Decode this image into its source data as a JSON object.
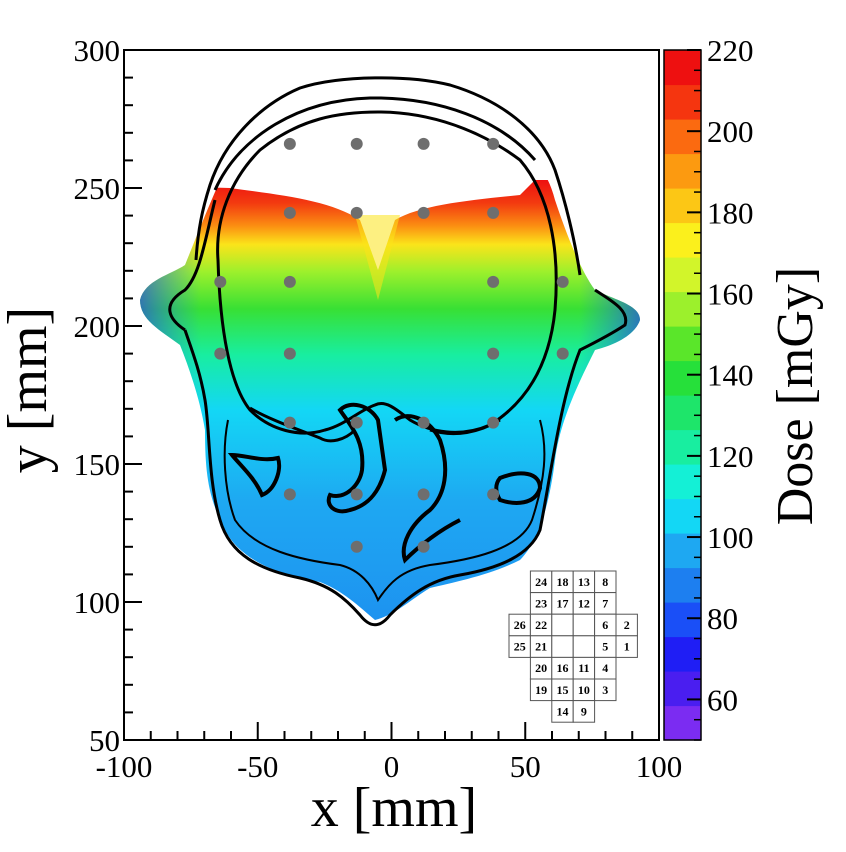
{
  "chart_data": {
    "type": "heatmap",
    "title": "",
    "xlabel": "x [mm]",
    "ylabel": "y [mm]",
    "xlim": [
      -100,
      100
    ],
    "ylim": [
      50,
      300
    ],
    "x_ticks": [
      -100,
      -50,
      0,
      50,
      100
    ],
    "y_ticks": [
      50,
      100,
      150,
      200,
      250,
      300
    ],
    "x_tick_labels": [
      "-100",
      "-50",
      "0",
      "50",
      "100"
    ],
    "y_tick_labels": [
      "50",
      "100",
      "150",
      "200",
      "250",
      "300"
    ],
    "colorbar": {
      "label": "Dose [mGy]",
      "range": [
        50,
        220
      ],
      "ticks": [
        60,
        80,
        100,
        120,
        140,
        160,
        180,
        200,
        220
      ],
      "tick_labels": [
        "60",
        "80",
        "100",
        "120",
        "140",
        "160",
        "180",
        "200",
        "220"
      ],
      "colors": [
        "#7b2cf2",
        "#4a1ef0",
        "#1f1ef5",
        "#1a4ff7",
        "#1d7ff0",
        "#1ea8f2",
        "#13d7f5",
        "#14f0d6",
        "#18eea0",
        "#1ee56a",
        "#26e03a",
        "#5ae62a",
        "#9cf02c",
        "#d2f52a",
        "#fbf01c",
        "#fcc715",
        "#fc9a10",
        "#fb6a10",
        "#f5350f",
        "#ee1010"
      ]
    },
    "dosimeter_points": [
      {
        "x": -38,
        "y": 266
      },
      {
        "x": -13,
        "y": 266
      },
      {
        "x": 12,
        "y": 266
      },
      {
        "x": 38,
        "y": 266
      },
      {
        "x": -38,
        "y": 241
      },
      {
        "x": -13,
        "y": 241
      },
      {
        "x": 12,
        "y": 241
      },
      {
        "x": 38,
        "y": 241
      },
      {
        "x": -64,
        "y": 216
      },
      {
        "x": -38,
        "y": 216
      },
      {
        "x": 38,
        "y": 216
      },
      {
        "x": 64,
        "y": 216
      },
      {
        "x": -64,
        "y": 190
      },
      {
        "x": -38,
        "y": 190
      },
      {
        "x": 38,
        "y": 190
      },
      {
        "x": 64,
        "y": 190
      },
      {
        "x": -38,
        "y": 165
      },
      {
        "x": -13,
        "y": 165
      },
      {
        "x": 12,
        "y": 165
      },
      {
        "x": 38,
        "y": 165
      },
      {
        "x": -38,
        "y": 139
      },
      {
        "x": -13,
        "y": 139
      },
      {
        "x": 12,
        "y": 139
      },
      {
        "x": 38,
        "y": 139
      },
      {
        "x": -13,
        "y": 120
      },
      {
        "x": 12,
        "y": 120
      }
    ],
    "inset_grid": {
      "rows": [
        [
          "",
          "24",
          "18",
          "13",
          "8",
          ""
        ],
        [
          "",
          "23",
          "17",
          "12",
          "7",
          ""
        ],
        [
          "26",
          "22",
          "",
          "",
          "6",
          "2"
        ],
        [
          "25",
          "21",
          "",
          "",
          "5",
          "1"
        ],
        [
          "",
          "20",
          "16",
          "11",
          "4",
          ""
        ],
        [
          "",
          "19",
          "15",
          "10",
          "3",
          ""
        ],
        [
          "",
          "",
          "14",
          "9",
          "",
          ""
        ]
      ]
    }
  }
}
